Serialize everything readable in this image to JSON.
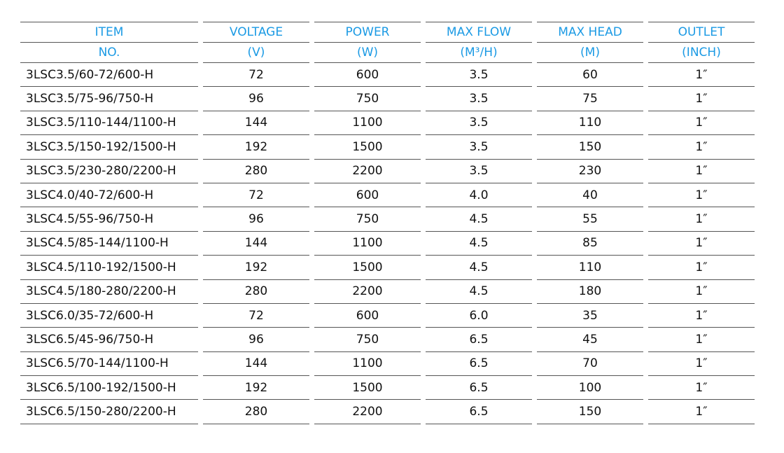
{
  "headers": {
    "row1": [
      "ITEM",
      "VOLTAGE",
      "POWER",
      "MAX FLOW",
      "MAX HEAD",
      "OUTLET"
    ],
    "row2": [
      "NO.",
      "(V)",
      "(W)",
      "(M³/H)",
      "(M)",
      "(INCH)"
    ]
  },
  "header_color": "#1b9ae4",
  "rows": [
    [
      "3LSC3.5/60-72/600-H",
      "72",
      "600",
      "3.5",
      "60",
      "1″"
    ],
    [
      "3LSC3.5/75-96/750-H",
      "96",
      "750",
      "3.5",
      "75",
      "1″"
    ],
    [
      "3LSC3.5/110-144/1100-H",
      "144",
      "1100",
      "3.5",
      "110",
      "1″"
    ],
    [
      "3LSC3.5/150-192/1500-H",
      "192",
      "1500",
      "3.5",
      "150",
      "1″"
    ],
    [
      "3LSC3.5/230-280/2200-H",
      "280",
      "2200",
      "3.5",
      "230",
      "1″"
    ],
    [
      "3LSC4.0/40-72/600-H",
      "72",
      "600",
      "4.0",
      "40",
      "1″"
    ],
    [
      "3LSC4.5/55-96/750-H",
      "96",
      "750",
      "4.5",
      "55",
      "1″"
    ],
    [
      "3LSC4.5/85-144/1100-H",
      "144",
      "1100",
      "4.5",
      "85",
      "1″"
    ],
    [
      "3LSC4.5/110-192/1500-H",
      "192",
      "1500",
      "4.5",
      "110",
      "1″"
    ],
    [
      "3LSC4.5/180-280/2200-H",
      "280",
      "2200",
      "4.5",
      "180",
      "1″"
    ],
    [
      "3LSC6.0/35-72/600-H",
      "72",
      "600",
      "6.0",
      "35",
      "1″"
    ],
    [
      "3LSC6.5/45-96/750-H",
      "96",
      "750",
      "6.5",
      "45",
      "1″"
    ],
    [
      "3LSC6.5/70-144/1100-H",
      "144",
      "1100",
      "6.5",
      "70",
      "1″"
    ],
    [
      "3LSC6.5/100-192/1500-H",
      "192",
      "1500",
      "6.5",
      "100",
      "1″"
    ],
    [
      "3LSC6.5/150-280/2200-H",
      "280",
      "2200",
      "6.5",
      "150",
      "1″"
    ]
  ]
}
